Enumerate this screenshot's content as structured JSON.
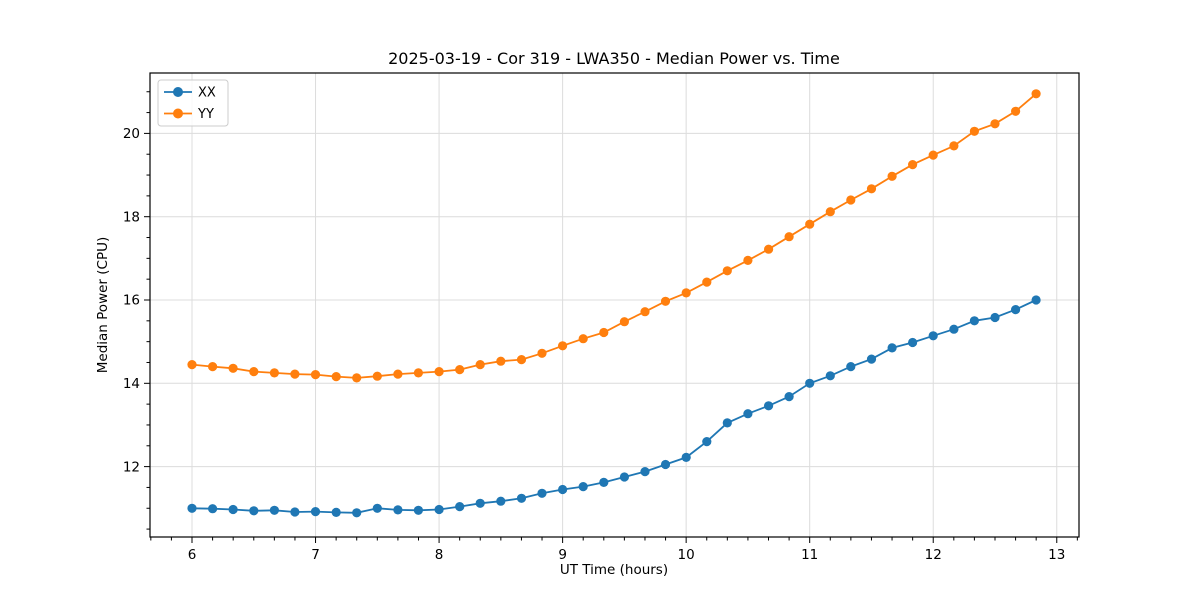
{
  "figure": {
    "title": "2025-03-19 - Cor 319 - LWA350 - Median Power vs. Time",
    "xlabel": "UT Time (hours)",
    "ylabel": "Median Power (CPU)"
  },
  "chart_data": {
    "type": "line",
    "title": "2025-03-19 - Cor 319 - LWA350 - Median Power vs. Time",
    "xlabel": "UT Time (hours)",
    "ylabel": "Median Power (CPU)",
    "xlim": [
      5.66,
      13.18
    ],
    "ylim": [
      10.31,
      21.45
    ],
    "x_major_ticks": [
      6,
      7,
      8,
      9,
      10,
      11,
      12,
      13
    ],
    "y_major_ticks": [
      12,
      14,
      16,
      18,
      20
    ],
    "x_minor_step": 0.16667,
    "y_minor_step": 0.5,
    "grid": true,
    "legend_position": "upper-left",
    "marker": "circle",
    "x": [
      6.0,
      6.167,
      6.333,
      6.5,
      6.667,
      6.833,
      7.0,
      7.167,
      7.333,
      7.5,
      7.667,
      7.833,
      8.0,
      8.167,
      8.333,
      8.5,
      8.667,
      8.833,
      9.0,
      9.167,
      9.333,
      9.5,
      9.667,
      9.833,
      10.0,
      10.167,
      10.333,
      10.5,
      10.667,
      10.833,
      11.0,
      11.167,
      11.333,
      11.5,
      11.667,
      11.833,
      12.0,
      12.167,
      12.333,
      12.5,
      12.667,
      12.833
    ],
    "series": [
      {
        "name": "XX",
        "color": "#1f77b4",
        "values": [
          11.0,
          10.99,
          10.97,
          10.94,
          10.95,
          10.91,
          10.92,
          10.9,
          10.89,
          11.0,
          10.96,
          10.95,
          10.97,
          11.04,
          11.12,
          11.17,
          11.24,
          11.36,
          11.45,
          11.52,
          11.62,
          11.75,
          11.88,
          12.05,
          12.22,
          12.6,
          13.05,
          13.27,
          13.46,
          13.68,
          14.0,
          14.18,
          14.4,
          14.58,
          14.85,
          14.98,
          15.14,
          15.3,
          15.5,
          15.58,
          15.77,
          16.0
        ]
      },
      {
        "name": "YY",
        "color": "#ff7f0e",
        "values": [
          14.45,
          14.4,
          14.36,
          14.28,
          14.25,
          14.22,
          14.21,
          14.16,
          14.13,
          14.17,
          14.22,
          14.25,
          14.28,
          14.33,
          14.45,
          14.53,
          14.57,
          14.72,
          14.9,
          15.07,
          15.22,
          15.48,
          15.72,
          15.97,
          16.17,
          16.43,
          16.7,
          16.95,
          17.22,
          17.52,
          17.82,
          18.12,
          18.4,
          18.67,
          18.97,
          19.25,
          19.48,
          19.7,
          20.05,
          20.23,
          20.53,
          20.95
        ]
      }
    ]
  }
}
